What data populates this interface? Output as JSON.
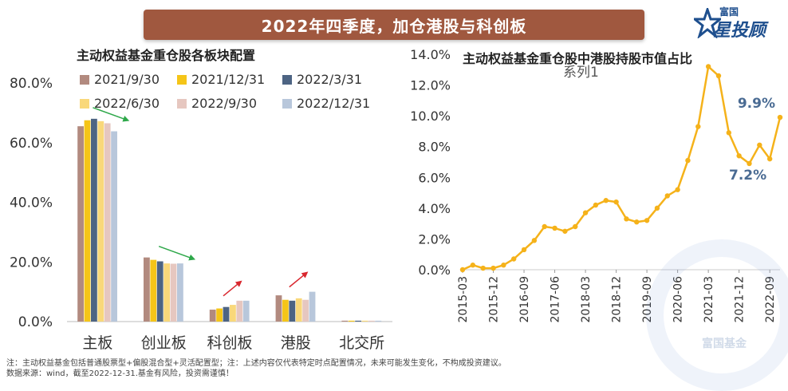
{
  "header": {
    "banner_title": "2022年四季度，加仓港股与科创板",
    "brand_small": "富国",
    "brand_big": "星投顾"
  },
  "footnotes": {
    "line1": "注：主动权益基金包括普通股票型+偏股混合型+灵活配置型；注：上述内容仅代表特定时点配置情况，未来可能发生变化，不构成投资建议。",
    "line2": "数据来源：wind，截至2022-12-31.基金有风险，投资需谨慎！"
  },
  "watermark": {
    "text": "富国基金"
  },
  "colors": {
    "banner": "#a0583f",
    "arrow_green": "#2ea84a",
    "arrow_red": "#d9272e",
    "line": "#f5b21a",
    "label_blue": "#4a6b93"
  },
  "chart_data": [
    {
      "type": "bar",
      "title": "主动权益基金重仓股各板块配置",
      "categories": [
        "主板",
        "创业板",
        "科创板",
        "港股",
        "北交所"
      ],
      "ylim": [
        0,
        80
      ],
      "yticks": [
        "0.0%",
        "20.0%",
        "40.0%",
        "60.0%",
        "80.0%"
      ],
      "grid": false,
      "legend_position": "top",
      "series": [
        {
          "name": "2021/9/30",
          "color": "#b28a7f",
          "values": [
            65.5,
            21.5,
            4.0,
            8.8,
            0.3
          ]
        },
        {
          "name": "2021/12/31",
          "color": "#f5c518",
          "values": [
            67.5,
            20.7,
            4.4,
            7.3,
            0.3
          ]
        },
        {
          "name": "2022/3/31",
          "color": "#4d6483",
          "values": [
            68.0,
            20.2,
            4.9,
            7.0,
            0.3
          ]
        },
        {
          "name": "2022/6/30",
          "color": "#f9d87a",
          "values": [
            67.2,
            19.5,
            5.6,
            7.8,
            0.3
          ]
        },
        {
          "name": "2022/9/30",
          "color": "#e6c7c0",
          "values": [
            66.5,
            19.4,
            7.0,
            7.3,
            0.3
          ]
        },
        {
          "name": "2022/12/31",
          "color": "#b8c7db",
          "values": [
            63.8,
            19.5,
            7.0,
            10.0,
            0.3
          ]
        }
      ],
      "trend_arrows": [
        {
          "category": "主板",
          "direction": "down",
          "color": "green"
        },
        {
          "category": "创业板",
          "direction": "down",
          "color": "green"
        },
        {
          "category": "科创板",
          "direction": "up",
          "color": "red"
        },
        {
          "category": "港股",
          "direction": "up",
          "color": "red"
        }
      ]
    },
    {
      "type": "line",
      "title": "主动权益基金重仓股中港股持股市值占比",
      "series_label": "系列1",
      "ylim": [
        0,
        14
      ],
      "yticks": [
        "0.0%",
        "2.0%",
        "4.0%",
        "6.0%",
        "8.0%",
        "10.0%",
        "12.0%",
        "14.0%"
      ],
      "xticks": [
        "2015-03",
        "2015-12",
        "2016-09",
        "2017-06",
        "2018-03",
        "2018-12",
        "2019-09",
        "2020-06",
        "2021-03",
        "2021-12",
        "2022-09"
      ],
      "grid": false,
      "x": [
        "2015-03",
        "2015-06",
        "2015-09",
        "2015-12",
        "2016-03",
        "2016-06",
        "2016-09",
        "2016-12",
        "2017-03",
        "2017-06",
        "2017-09",
        "2017-12",
        "2018-03",
        "2018-06",
        "2018-09",
        "2018-12",
        "2019-03",
        "2019-06",
        "2019-09",
        "2019-12",
        "2020-03",
        "2020-06",
        "2020-09",
        "2020-12",
        "2021-03",
        "2021-06",
        "2021-09",
        "2021-12",
        "2022-03",
        "2022-06",
        "2022-09",
        "2022-12"
      ],
      "values": [
        0.0,
        0.3,
        0.1,
        0.1,
        0.3,
        0.7,
        1.3,
        1.9,
        2.8,
        2.7,
        2.5,
        2.8,
        3.7,
        4.2,
        4.5,
        4.4,
        3.3,
        3.1,
        3.2,
        4.0,
        4.8,
        5.2,
        7.1,
        9.3,
        13.2,
        12.6,
        8.9,
        7.4,
        6.9,
        8.1,
        7.2,
        9.9
      ],
      "data_labels": [
        {
          "x": "2022-09",
          "text": "7.2%"
        },
        {
          "x": "2022-12",
          "text": "9.9%"
        }
      ]
    }
  ]
}
